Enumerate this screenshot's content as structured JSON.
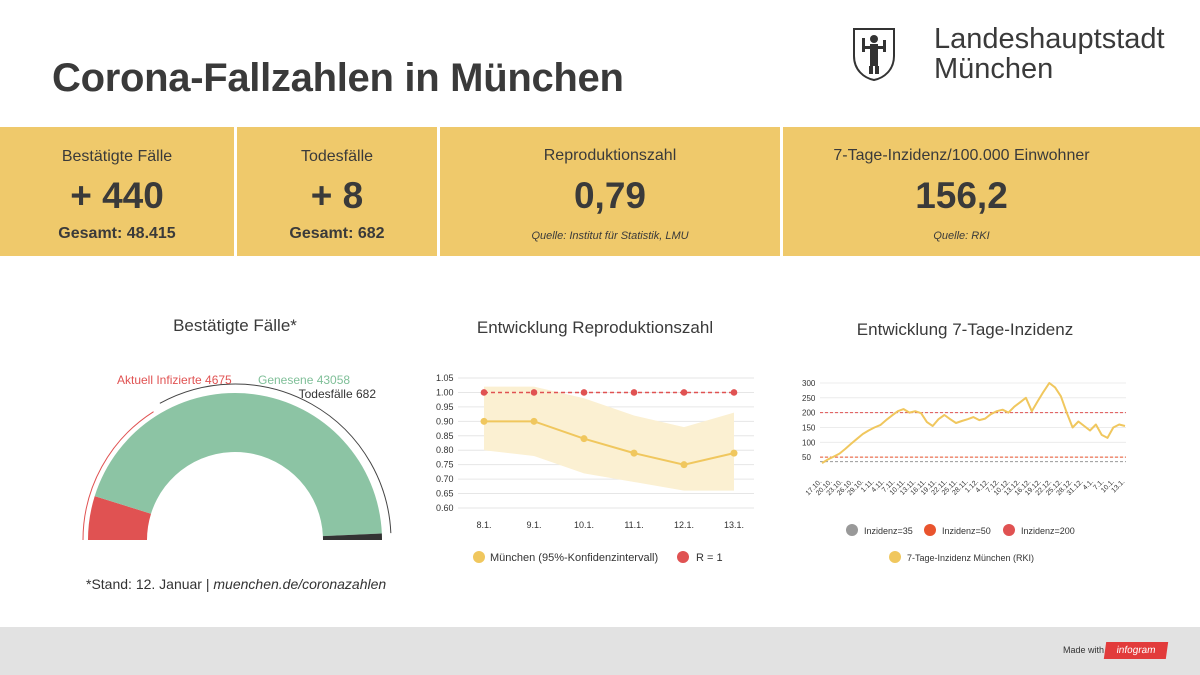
{
  "header": {
    "title": "Corona-Fallzahlen in München",
    "org_line1": "Landeshauptstadt",
    "org_line2": "München"
  },
  "stats": [
    {
      "label": "Bestätigte Fälle",
      "value": "+ 440",
      "sub": "Gesamt: 48.415"
    },
    {
      "label": "Todesfälle",
      "value": "+ 8",
      "sub": "Gesamt: 682"
    },
    {
      "label": "Reproduktionszahl",
      "value": "0,79",
      "source": "Quelle: Institut für Statistik, LMU"
    },
    {
      "label": "7-Tage-Inzidenz/100.000 Einwohner",
      "value": "156,2",
      "source": "Quelle: RKI"
    }
  ],
  "colors": {
    "stat_bar": "#efc96b",
    "infected": "#e05252",
    "recovered": "#8cc4a4",
    "deaths": "#333333",
    "r_line": "#f0c75e",
    "r_one": "#e05252",
    "inzidenz_line": "#f0c75e",
    "inz35": "#999999",
    "inz50": "#e9542e",
    "inz200": "#e05252"
  },
  "note": {
    "stand": "*Stand: 12. Januar | ",
    "link": "muenchen.de/coronazahlen"
  },
  "footer": {
    "made_with": "Made with",
    "brand": "infogram"
  },
  "chart_data": [
    {
      "type": "pie",
      "subtype": "semicircle-gauge",
      "title": "Bestätigte Fälle*",
      "slices": [
        {
          "label": "Aktuell Infizierte",
          "value": 4675
        },
        {
          "label": "Genesene",
          "value": 43058
        },
        {
          "label": "Todesfälle",
          "value": 682
        }
      ]
    },
    {
      "type": "line",
      "title": "Entwicklung Reproduktionszahl",
      "categories": [
        "8.1.",
        "9.1.",
        "10.1.",
        "11.1.",
        "12.1.",
        "13.1."
      ],
      "ylim": [
        0.6,
        1.05
      ],
      "yticks": [
        "1.05",
        "1.00",
        "0.95",
        "0.90",
        "0.85",
        "0.80",
        "0.75",
        "0.70",
        "0.65",
        "0.60"
      ],
      "series": [
        {
          "name": "München (95%-Konfidenzintervall)",
          "values": [
            0.9,
            0.9,
            0.84,
            0.79,
            0.75,
            0.79
          ],
          "ci_low": [
            0.8,
            0.78,
            0.72,
            0.69,
            0.66,
            0.66
          ],
          "ci_high": [
            1.02,
            1.02,
            0.98,
            0.92,
            0.88,
            0.93
          ]
        },
        {
          "name": "R = 1",
          "values": [
            1.0,
            1.0,
            1.0,
            1.0,
            1.0,
            1.0
          ]
        }
      ]
    },
    {
      "type": "line",
      "title": "Entwicklung 7-Tage-Inzidenz",
      "ylim": [
        0,
        310
      ],
      "yticks": [
        300,
        250,
        200,
        150,
        100,
        50
      ],
      "x_ticks": [
        "17.10.",
        "20.10.",
        "23.10.",
        "26.10.",
        "29.10.",
        "1.11.",
        "4.11.",
        "7.11.",
        "10.11.",
        "13.11.",
        "16.11.",
        "19.11.",
        "22.11.",
        "25.11.",
        "28.11.",
        "1.12.",
        "4.12.",
        "7.12.",
        "10.12.",
        "13.12.",
        "16.12.",
        "19.12.",
        "22.12.",
        "25.12.",
        "28.12.",
        "31.12.",
        "4.1.",
        "7.1.",
        "10.1.",
        "13.1."
      ],
      "series": [
        {
          "name": "7-Tage-Inzidenz München (RKI)",
          "values": [
            30,
            42,
            52,
            62,
            78,
            95,
            112,
            128,
            140,
            150,
            158,
            175,
            190,
            205,
            212,
            200,
            205,
            198,
            168,
            155,
            178,
            192,
            178,
            165,
            172,
            178,
            185,
            175,
            180,
            195,
            205,
            210,
            200,
            220,
            235,
            250,
            205,
            238,
            270,
            300,
            285,
            255,
            200,
            150,
            170,
            155,
            140,
            160,
            125,
            115,
            150,
            160,
            155
          ]
        },
        {
          "name": "Inzidenz=35",
          "values": [
            35
          ]
        },
        {
          "name": "Inzidenz=50",
          "values": [
            50
          ]
        },
        {
          "name": "Inzidenz=200",
          "values": [
            200
          ]
        }
      ]
    }
  ]
}
